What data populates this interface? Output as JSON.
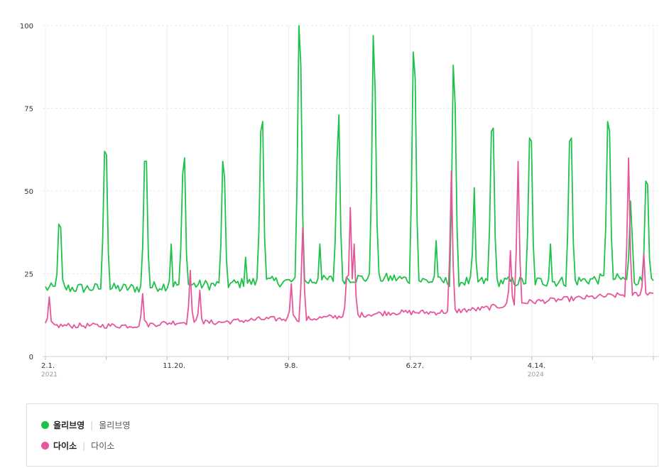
{
  "chart_data": {
    "type": "line",
    "x_ticks": [
      {
        "label": "2.1.",
        "year": "2021"
      },
      {
        "label": "11.20.",
        "year": ""
      },
      {
        "label": "9.8.",
        "year": ""
      },
      {
        "label": "6.27.",
        "year": ""
      },
      {
        "label": "4.14.",
        "year": "2024"
      }
    ],
    "ylim": [
      0,
      100
    ],
    "y_ticks": [
      0,
      25,
      50,
      75,
      100
    ],
    "grid": true,
    "series": [
      {
        "name": "올리브영",
        "detail": "올리브영",
        "color": "#1dc249",
        "baseline": [
          20,
          20,
          20,
          21,
          21,
          22,
          22,
          23,
          23,
          22,
          22,
          22,
          22,
          23,
          22
        ],
        "spikes": [
          {
            "week": 7,
            "value": 40
          },
          {
            "week": 8,
            "value": 39
          },
          {
            "week": 31,
            "value": 62
          },
          {
            "week": 32,
            "value": 61
          },
          {
            "week": 52,
            "value": 59
          },
          {
            "week": 53,
            "value": 59
          },
          {
            "week": 66,
            "value": 34
          },
          {
            "week": 72,
            "value": 55
          },
          {
            "week": 73,
            "value": 60
          },
          {
            "week": 93,
            "value": 59
          },
          {
            "week": 94,
            "value": 54
          },
          {
            "week": 105,
            "value": 30
          },
          {
            "week": 113,
            "value": 68
          },
          {
            "week": 114,
            "value": 71
          },
          {
            "week": 133,
            "value": 100
          },
          {
            "week": 134,
            "value": 88
          },
          {
            "week": 144,
            "value": 34
          },
          {
            "week": 153,
            "value": 60
          },
          {
            "week": 154,
            "value": 73
          },
          {
            "week": 172,
            "value": 97
          },
          {
            "week": 173,
            "value": 81
          },
          {
            "week": 193,
            "value": 92
          },
          {
            "week": 194,
            "value": 84
          },
          {
            "week": 205,
            "value": 35
          },
          {
            "week": 214,
            "value": 88
          },
          {
            "week": 215,
            "value": 76
          },
          {
            "week": 225,
            "value": 51
          },
          {
            "week": 234,
            "value": 68
          },
          {
            "week": 235,
            "value": 69
          },
          {
            "week": 254,
            "value": 66
          },
          {
            "week": 255,
            "value": 65
          },
          {
            "week": 265,
            "value": 34
          },
          {
            "week": 275,
            "value": 65
          },
          {
            "week": 276,
            "value": 66
          },
          {
            "week": 295,
            "value": 71
          },
          {
            "week": 296,
            "value": 68
          },
          {
            "week": 307,
            "value": 47
          },
          {
            "week": 308,
            "value": 35
          },
          {
            "week": 315,
            "value": 53
          },
          {
            "week": 316,
            "value": 52
          }
        ]
      },
      {
        "name": "다이소",
        "detail": "다이소",
        "color": "#e6569b",
        "baseline": [
          9,
          9,
          9,
          10,
          10,
          11,
          11,
          12,
          13,
          13,
          14,
          16,
          17,
          18,
          19
        ],
        "spikes": [
          {
            "week": 2,
            "value": 18
          },
          {
            "week": 51,
            "value": 19
          },
          {
            "week": 76,
            "value": 26
          },
          {
            "week": 81,
            "value": 20
          },
          {
            "week": 129,
            "value": 22
          },
          {
            "week": 135,
            "value": 39
          },
          {
            "week": 158,
            "value": 24
          },
          {
            "week": 160,
            "value": 45
          },
          {
            "week": 162,
            "value": 34
          },
          {
            "week": 213,
            "value": 56
          },
          {
            "week": 244,
            "value": 32
          },
          {
            "week": 248,
            "value": 59
          },
          {
            "week": 306,
            "value": 60
          },
          {
            "week": 314,
            "value": 31
          }
        ]
      }
    ]
  }
}
